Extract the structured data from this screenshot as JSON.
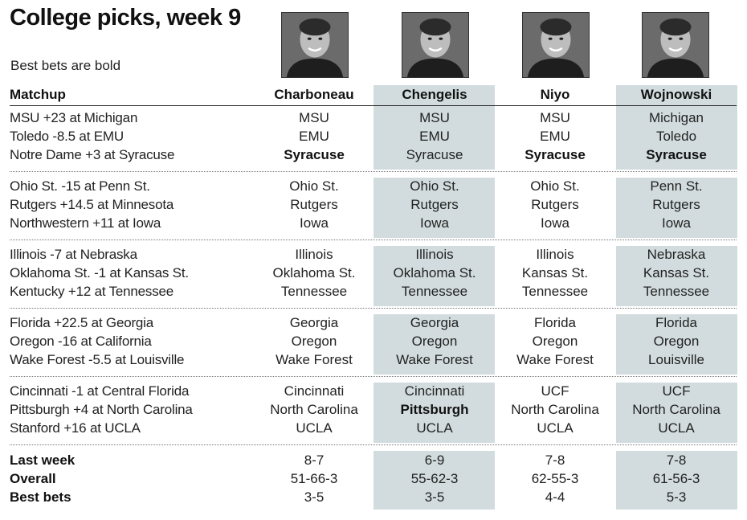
{
  "title": "College picks, week 9",
  "subtitle": "Best bets are bold",
  "columns": {
    "matchup": "Matchup",
    "pickers": [
      "Charboneau",
      "Chengelis",
      "Niyo",
      "Wojnowski"
    ]
  },
  "groups": [
    {
      "rows": [
        {
          "matchup": "MSU +23 at Michigan",
          "picks": [
            {
              "t": "MSU",
              "b": false
            },
            {
              "t": "MSU",
              "b": false
            },
            {
              "t": "MSU",
              "b": false
            },
            {
              "t": "Michigan",
              "b": false
            }
          ]
        },
        {
          "matchup": "Toledo -8.5 at EMU",
          "picks": [
            {
              "t": "EMU",
              "b": false
            },
            {
              "t": "EMU",
              "b": false
            },
            {
              "t": "EMU",
              "b": false
            },
            {
              "t": "Toledo",
              "b": false
            }
          ]
        },
        {
          "matchup": "Notre Dame +3 at Syracuse",
          "picks": [
            {
              "t": "Syracuse",
              "b": true
            },
            {
              "t": "Syracuse",
              "b": false
            },
            {
              "t": "Syracuse",
              "b": true
            },
            {
              "t": "Syracuse",
              "b": true
            }
          ]
        }
      ]
    },
    {
      "rows": [
        {
          "matchup": "Ohio St. -15 at Penn St.",
          "picks": [
            {
              "t": "Ohio St.",
              "b": false
            },
            {
              "t": "Ohio St.",
              "b": false
            },
            {
              "t": "Ohio St.",
              "b": false
            },
            {
              "t": "Penn St.",
              "b": false
            }
          ]
        },
        {
          "matchup": "Rutgers +14.5 at Minnesota",
          "picks": [
            {
              "t": "Rutgers",
              "b": false
            },
            {
              "t": "Rutgers",
              "b": false
            },
            {
              "t": "Rutgers",
              "b": false
            },
            {
              "t": "Rutgers",
              "b": false
            }
          ]
        },
        {
          "matchup": "Northwestern +11 at Iowa",
          "picks": [
            {
              "t": "Iowa",
              "b": false
            },
            {
              "t": "Iowa",
              "b": false
            },
            {
              "t": "Iowa",
              "b": false
            },
            {
              "t": "Iowa",
              "b": false
            }
          ]
        }
      ]
    },
    {
      "rows": [
        {
          "matchup": "Illinois -7 at Nebraska",
          "picks": [
            {
              "t": "Illinois",
              "b": false
            },
            {
              "t": "Illinois",
              "b": false
            },
            {
              "t": "Illinois",
              "b": false
            },
            {
              "t": "Nebraska",
              "b": false
            }
          ]
        },
        {
          "matchup": "Oklahoma St. -1 at Kansas St.",
          "picks": [
            {
              "t": "Oklahoma St.",
              "b": false
            },
            {
              "t": "Oklahoma St.",
              "b": false
            },
            {
              "t": "Kansas St.",
              "b": false
            },
            {
              "t": "Kansas St.",
              "b": false
            }
          ]
        },
        {
          "matchup": "Kentucky +12 at Tennessee",
          "picks": [
            {
              "t": "Tennessee",
              "b": false
            },
            {
              "t": "Tennessee",
              "b": false
            },
            {
              "t": "Tennessee",
              "b": false
            },
            {
              "t": "Tennessee",
              "b": false
            }
          ]
        }
      ]
    },
    {
      "rows": [
        {
          "matchup": "Florida +22.5 at Georgia",
          "picks": [
            {
              "t": "Georgia",
              "b": false
            },
            {
              "t": "Georgia",
              "b": false
            },
            {
              "t": "Florida",
              "b": false
            },
            {
              "t": "Florida",
              "b": false
            }
          ]
        },
        {
          "matchup": "Oregon -16 at California",
          "picks": [
            {
              "t": "Oregon",
              "b": false
            },
            {
              "t": "Oregon",
              "b": false
            },
            {
              "t": "Oregon",
              "b": false
            },
            {
              "t": "Oregon",
              "b": false
            }
          ]
        },
        {
          "matchup": "Wake Forest -5.5 at Louisville",
          "picks": [
            {
              "t": "Wake Forest",
              "b": false
            },
            {
              "t": "Wake Forest",
              "b": false
            },
            {
              "t": "Wake Forest",
              "b": false
            },
            {
              "t": "Louisville",
              "b": false
            }
          ]
        }
      ]
    },
    {
      "rows": [
        {
          "matchup": "Cincinnati -1 at Central Florida",
          "picks": [
            {
              "t": "Cincinnati",
              "b": false
            },
            {
              "t": "Cincinnati",
              "b": false
            },
            {
              "t": "UCF",
              "b": false
            },
            {
              "t": "UCF",
              "b": false
            }
          ]
        },
        {
          "matchup": "Pittsburgh +4 at North Carolina",
          "picks": [
            {
              "t": "North Carolina",
              "b": false
            },
            {
              "t": "Pittsburgh",
              "b": true
            },
            {
              "t": "North Carolina",
              "b": false
            },
            {
              "t": "North Carolina",
              "b": false
            }
          ]
        },
        {
          "matchup": "Stanford +16 at UCLA",
          "picks": [
            {
              "t": "UCLA",
              "b": false
            },
            {
              "t": "UCLA",
              "b": false
            },
            {
              "t": "UCLA",
              "b": false
            },
            {
              "t": "UCLA",
              "b": false
            }
          ]
        }
      ]
    }
  ],
  "records": [
    {
      "label": "Last week",
      "values": [
        "8-7",
        "6-9",
        "7-8",
        "7-8"
      ]
    },
    {
      "label": "Overall",
      "values": [
        "51-66-3",
        "55-62-3",
        "62-55-3",
        "61-56-3"
      ]
    },
    {
      "label": "Best bets",
      "values": [
        "3-5",
        "3-5",
        "4-4",
        "5-3"
      ]
    }
  ],
  "colors": {
    "shade": "#d2dcdf",
    "text": "#111111",
    "rule": "#222222"
  }
}
